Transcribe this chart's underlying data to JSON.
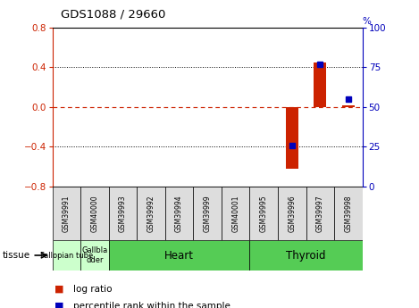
{
  "title": "GDS1088 / 29660",
  "samples": [
    "GSM39991",
    "GSM40000",
    "GSM39993",
    "GSM39992",
    "GSM39994",
    "GSM39999",
    "GSM40001",
    "GSM39995",
    "GSM39996",
    "GSM39997",
    "GSM39998"
  ],
  "log_ratios": [
    0.0,
    0.0,
    0.0,
    0.0,
    0.0,
    0.0,
    0.0,
    0.0,
    -0.62,
    0.45,
    0.02
  ],
  "percentile_ranks": [
    null,
    null,
    null,
    null,
    null,
    null,
    null,
    null,
    26,
    77,
    55
  ],
  "tissues": [
    {
      "label": "Fallopian tube",
      "start": 0,
      "end": 1,
      "light": true
    },
    {
      "label": "Gallbla\ndder",
      "start": 1,
      "end": 2,
      "light": true
    },
    {
      "label": "Heart",
      "start": 2,
      "end": 7,
      "light": false
    },
    {
      "label": "Thyroid",
      "start": 7,
      "end": 11,
      "light": false
    }
  ],
  "ylim": [
    -0.8,
    0.8
  ],
  "y_ticks": [
    -0.8,
    -0.4,
    0.0,
    0.4,
    0.8
  ],
  "y2lim": [
    0,
    100
  ],
  "y2_ticks": [
    0,
    25,
    50,
    75,
    100
  ],
  "bar_color": "#cc2200",
  "dot_color": "#0000bb",
  "bg_color": "#ffffff",
  "light_tissue_color": "#ccffcc",
  "dark_tissue_color": "#55cc55",
  "sample_bg_color": "#dddddd",
  "plot_area_color": "#ffffff"
}
